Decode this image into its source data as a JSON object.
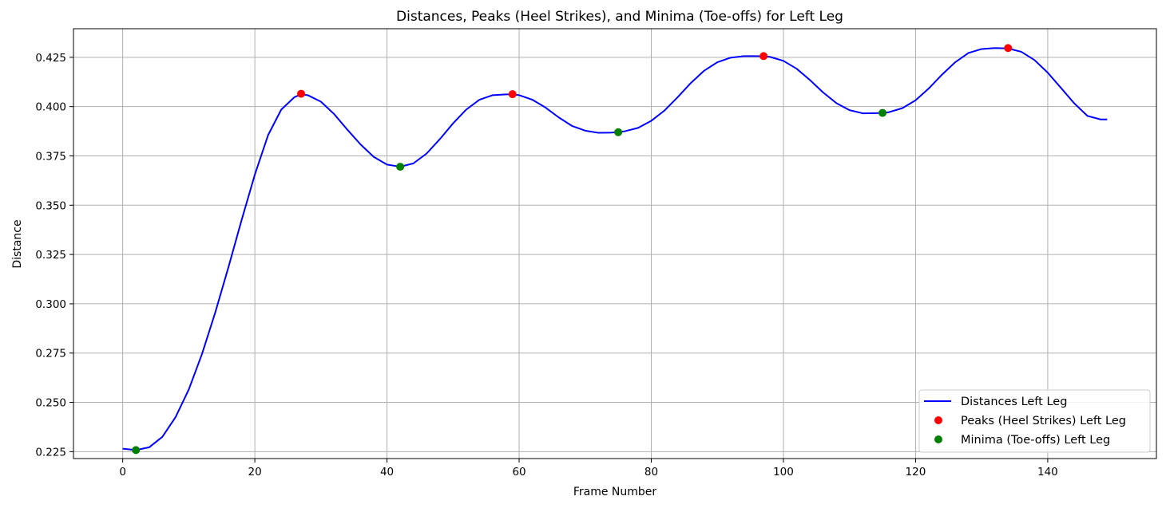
{
  "chart_data": {
    "type": "line",
    "title": "Distances, Peaks (Heel Strikes), and Minima (Toe-offs) for Left Leg",
    "xlabel": "Frame Number",
    "ylabel": "Distance",
    "xlim": [
      -7.45,
      156.45
    ],
    "ylim": [
      0.2215,
      0.4395
    ],
    "xticks": [
      0,
      20,
      40,
      60,
      80,
      100,
      120,
      140
    ],
    "xtick_labels": [
      "0",
      "20",
      "40",
      "60",
      "80",
      "100",
      "120",
      "140"
    ],
    "yticks": [
      0.225,
      0.25,
      0.275,
      0.3,
      0.325,
      0.35,
      0.375,
      0.4,
      0.425
    ],
    "ytick_labels": [
      "0.225",
      "0.250",
      "0.275",
      "0.300",
      "0.325",
      "0.350",
      "0.375",
      "0.400",
      "0.425"
    ],
    "grid": true,
    "legend_position": "lower-right",
    "series": [
      {
        "name": "Distances Left Leg",
        "kind": "line",
        "color": "#0000ff",
        "x": [
          0,
          2,
          4,
          6,
          8,
          10,
          12,
          14,
          16,
          18,
          20,
          22,
          24,
          26,
          27,
          28,
          30,
          32,
          34,
          36,
          38,
          40,
          42,
          44,
          46,
          48,
          50,
          52,
          54,
          56,
          58,
          59,
          60,
          62,
          64,
          66,
          68,
          70,
          72,
          74,
          75,
          76,
          78,
          80,
          82,
          84,
          86,
          88,
          90,
          92,
          94,
          96,
          97,
          98,
          100,
          102,
          104,
          106,
          108,
          110,
          112,
          114,
          115,
          116,
          118,
          120,
          122,
          124,
          126,
          128,
          130,
          132,
          134,
          136,
          138,
          140,
          142,
          144,
          146,
          148,
          149
        ],
        "y": [
          0.2265,
          0.2258,
          0.2272,
          0.2325,
          0.2425,
          0.2565,
          0.2745,
          0.2955,
          0.3185,
          0.3425,
          0.3655,
          0.3855,
          0.3985,
          0.4048,
          0.4062,
          0.4058,
          0.4025,
          0.3962,
          0.3883,
          0.3808,
          0.3745,
          0.3706,
          0.3695,
          0.3712,
          0.3762,
          0.3835,
          0.3915,
          0.3985,
          0.4035,
          0.4058,
          0.4062,
          0.4062,
          0.4058,
          0.4035,
          0.3995,
          0.3945,
          0.3902,
          0.3878,
          0.3867,
          0.3868,
          0.387,
          0.3875,
          0.3892,
          0.3928,
          0.398,
          0.4048,
          0.412,
          0.4182,
          0.4225,
          0.4248,
          0.4256,
          0.4256,
          0.4255,
          0.4252,
          0.4232,
          0.4192,
          0.4135,
          0.4072,
          0.4018,
          0.3982,
          0.3966,
          0.3967,
          0.3968,
          0.3972,
          0.3992,
          0.4032,
          0.4092,
          0.4162,
          0.4225,
          0.4272,
          0.4292,
          0.4297,
          0.4295,
          0.4278,
          0.4236,
          0.4172,
          0.4095,
          0.4017,
          0.3953,
          0.3935,
          0.3935
        ]
      },
      {
        "name": "Peaks (Heel Strikes) Left Leg",
        "kind": "scatter",
        "color": "#ff0000",
        "x": [
          27,
          59,
          97,
          134
        ],
        "y": [
          0.4065,
          0.4063,
          0.4256,
          0.4297
        ]
      },
      {
        "name": "Minima (Toe-offs) Left Leg",
        "kind": "scatter",
        "color": "#008000",
        "x": [
          2,
          42,
          75,
          115
        ],
        "y": [
          0.2258,
          0.3695,
          0.387,
          0.3968
        ]
      }
    ]
  }
}
